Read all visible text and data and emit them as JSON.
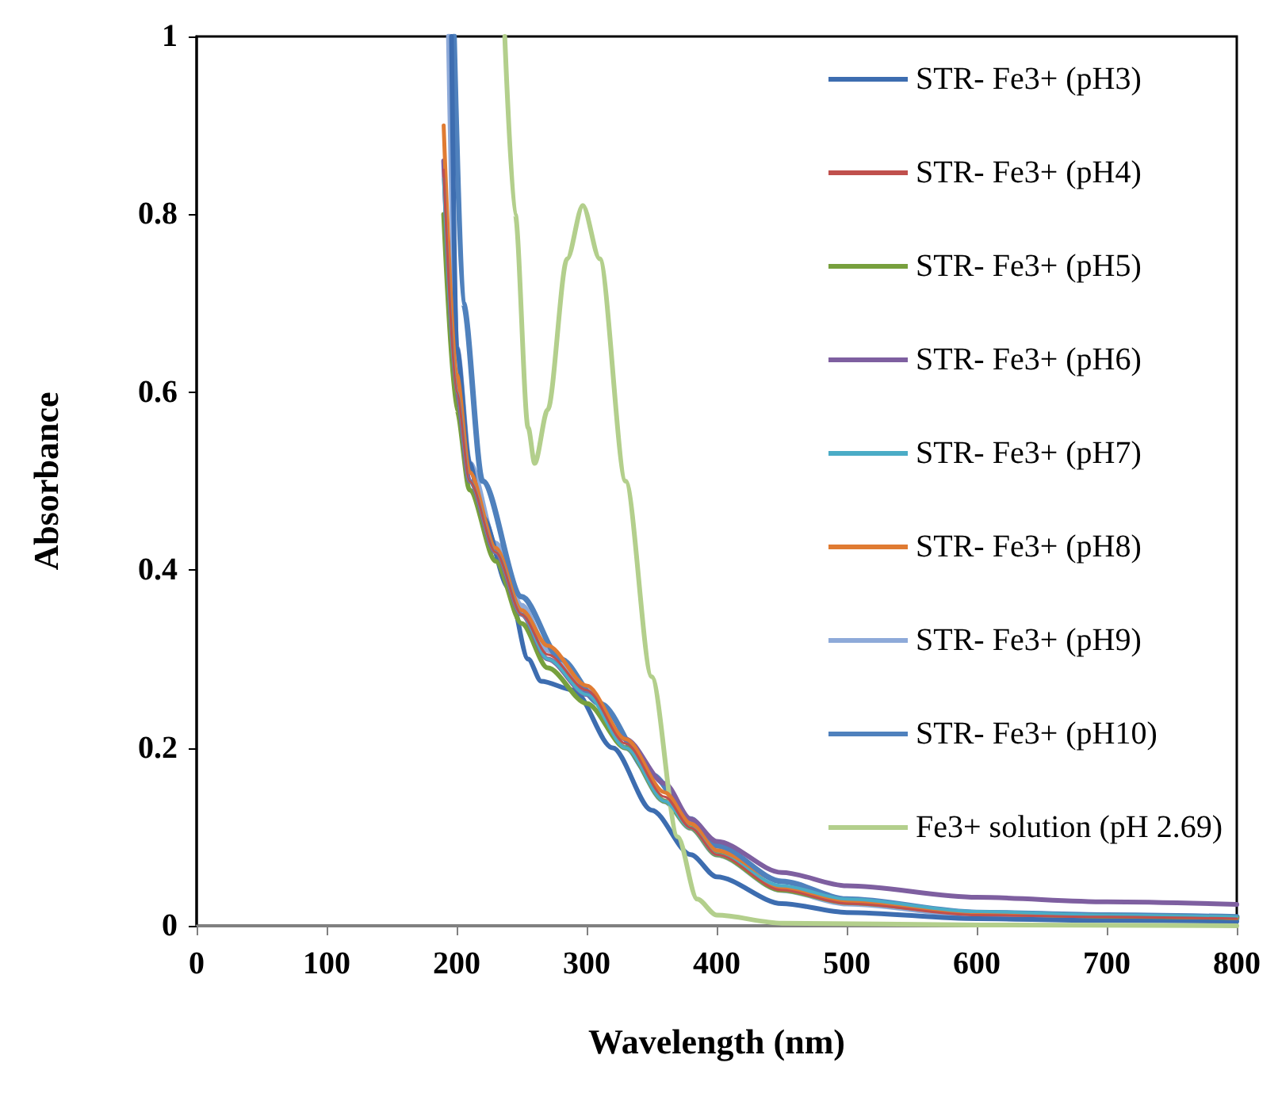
{
  "chart_data": {
    "type": "line",
    "xlabel": "Wavelength (nm)",
    "ylabel": "Absorbance",
    "xlim": [
      0,
      800
    ],
    "xticks": [
      0,
      100,
      200,
      300,
      400,
      500,
      600,
      700,
      800
    ],
    "ylim": [
      0,
      1
    ],
    "yticks": [
      0,
      0.2,
      0.4,
      0.6,
      0.8,
      1
    ],
    "grid": false,
    "legend": "top right",
    "marker": "none",
    "line_style": "solid",
    "series": [
      {
        "name": "STR- Fe3+ (pH3)",
        "color": "#3d6db0",
        "x": [
          196,
          200,
          210,
          220,
          240,
          255,
          265,
          290,
          320,
          350,
          380,
          400,
          450,
          500,
          600,
          700,
          800
        ],
        "values": [
          1,
          0.65,
          0.52,
          0.46,
          0.38,
          0.3,
          0.275,
          0.265,
          0.2,
          0.13,
          0.08,
          0.055,
          0.025,
          0.015,
          0.008,
          0.006,
          0.005
        ]
      },
      {
        "name": "STR- Fe3+ (pH4)",
        "color": "#c0504d",
        "x": [
          190,
          200,
          210,
          230,
          250,
          270,
          300,
          330,
          360,
          380,
          400,
          450,
          500,
          600,
          700,
          800
        ],
        "values": [
          0.85,
          0.6,
          0.5,
          0.42,
          0.35,
          0.305,
          0.265,
          0.205,
          0.145,
          0.11,
          0.08,
          0.04,
          0.025,
          0.012,
          0.01,
          0.008
        ]
      },
      {
        "name": "STR- Fe3+ (pH5)",
        "color": "#77a03d",
        "x": [
          190,
          200,
          210,
          230,
          250,
          270,
          300,
          330,
          360,
          380,
          400,
          450,
          500,
          600,
          700,
          800
        ],
        "values": [
          0.8,
          0.58,
          0.49,
          0.41,
          0.34,
          0.29,
          0.25,
          0.2,
          0.14,
          0.11,
          0.08,
          0.04,
          0.026,
          0.014,
          0.011,
          0.009
        ]
      },
      {
        "name": "STR- Fe3+ (pH6)",
        "color": "#7e5fa0",
        "x": [
          190,
          200,
          210,
          230,
          250,
          270,
          300,
          330,
          360,
          380,
          400,
          450,
          500,
          600,
          700,
          800
        ],
        "values": [
          0.86,
          0.6,
          0.5,
          0.42,
          0.35,
          0.3,
          0.26,
          0.21,
          0.16,
          0.12,
          0.095,
          0.06,
          0.045,
          0.032,
          0.027,
          0.024
        ]
      },
      {
        "name": "STR- Fe3+ (pH7)",
        "color": "#4bacc6",
        "x": [
          190,
          200,
          210,
          230,
          250,
          270,
          300,
          330,
          360,
          380,
          400,
          450,
          500,
          600,
          700,
          800
        ],
        "values": [
          0.84,
          0.6,
          0.5,
          0.42,
          0.35,
          0.3,
          0.26,
          0.2,
          0.14,
          0.11,
          0.08,
          0.045,
          0.03,
          0.016,
          0.012,
          0.01
        ]
      },
      {
        "name": "STR- Fe3+ (pH8)",
        "color": "#e07b32",
        "x": [
          190,
          200,
          210,
          230,
          250,
          270,
          300,
          330,
          360,
          380,
          400,
          450,
          500,
          600,
          700,
          800
        ],
        "values": [
          0.9,
          0.62,
          0.51,
          0.425,
          0.355,
          0.315,
          0.27,
          0.21,
          0.15,
          0.115,
          0.085,
          0.043,
          0.028,
          0.014,
          0.011,
          0.009
        ]
      },
      {
        "name": "STR- Fe3+ (pH9)",
        "color": "#8eaad9",
        "x": [
          194,
          200,
          210,
          230,
          250,
          270,
          300,
          330,
          360,
          380,
          400,
          450,
          500,
          600,
          700,
          800
        ],
        "values": [
          1,
          0.65,
          0.52,
          0.43,
          0.36,
          0.31,
          0.265,
          0.2,
          0.14,
          0.11,
          0.08,
          0.04,
          0.025,
          0.012,
          0.01,
          0.008
        ]
      },
      {
        "name": "STR- Fe3+ (pH10)",
        "color": "#4f81bd",
        "x": [
          198,
          205,
          220,
          250,
          280,
          310,
          350,
          380,
          400,
          450,
          500,
          600,
          700,
          800
        ],
        "values": [
          1,
          0.7,
          0.5,
          0.37,
          0.3,
          0.25,
          0.17,
          0.12,
          0.09,
          0.05,
          0.03,
          0.015,
          0.012,
          0.01
        ]
      },
      {
        "name": "Fe3+ solution (pH 2.69)",
        "color": "#b3cf8c",
        "x": [
          237,
          245,
          255,
          260,
          270,
          285,
          297,
          310,
          330,
          350,
          370,
          385,
          400,
          450,
          600,
          800
        ],
        "values": [
          1,
          0.8,
          0.56,
          0.52,
          0.58,
          0.75,
          0.81,
          0.75,
          0.5,
          0.28,
          0.1,
          0.03,
          0.012,
          0.003,
          0.001,
          0
        ]
      }
    ]
  }
}
